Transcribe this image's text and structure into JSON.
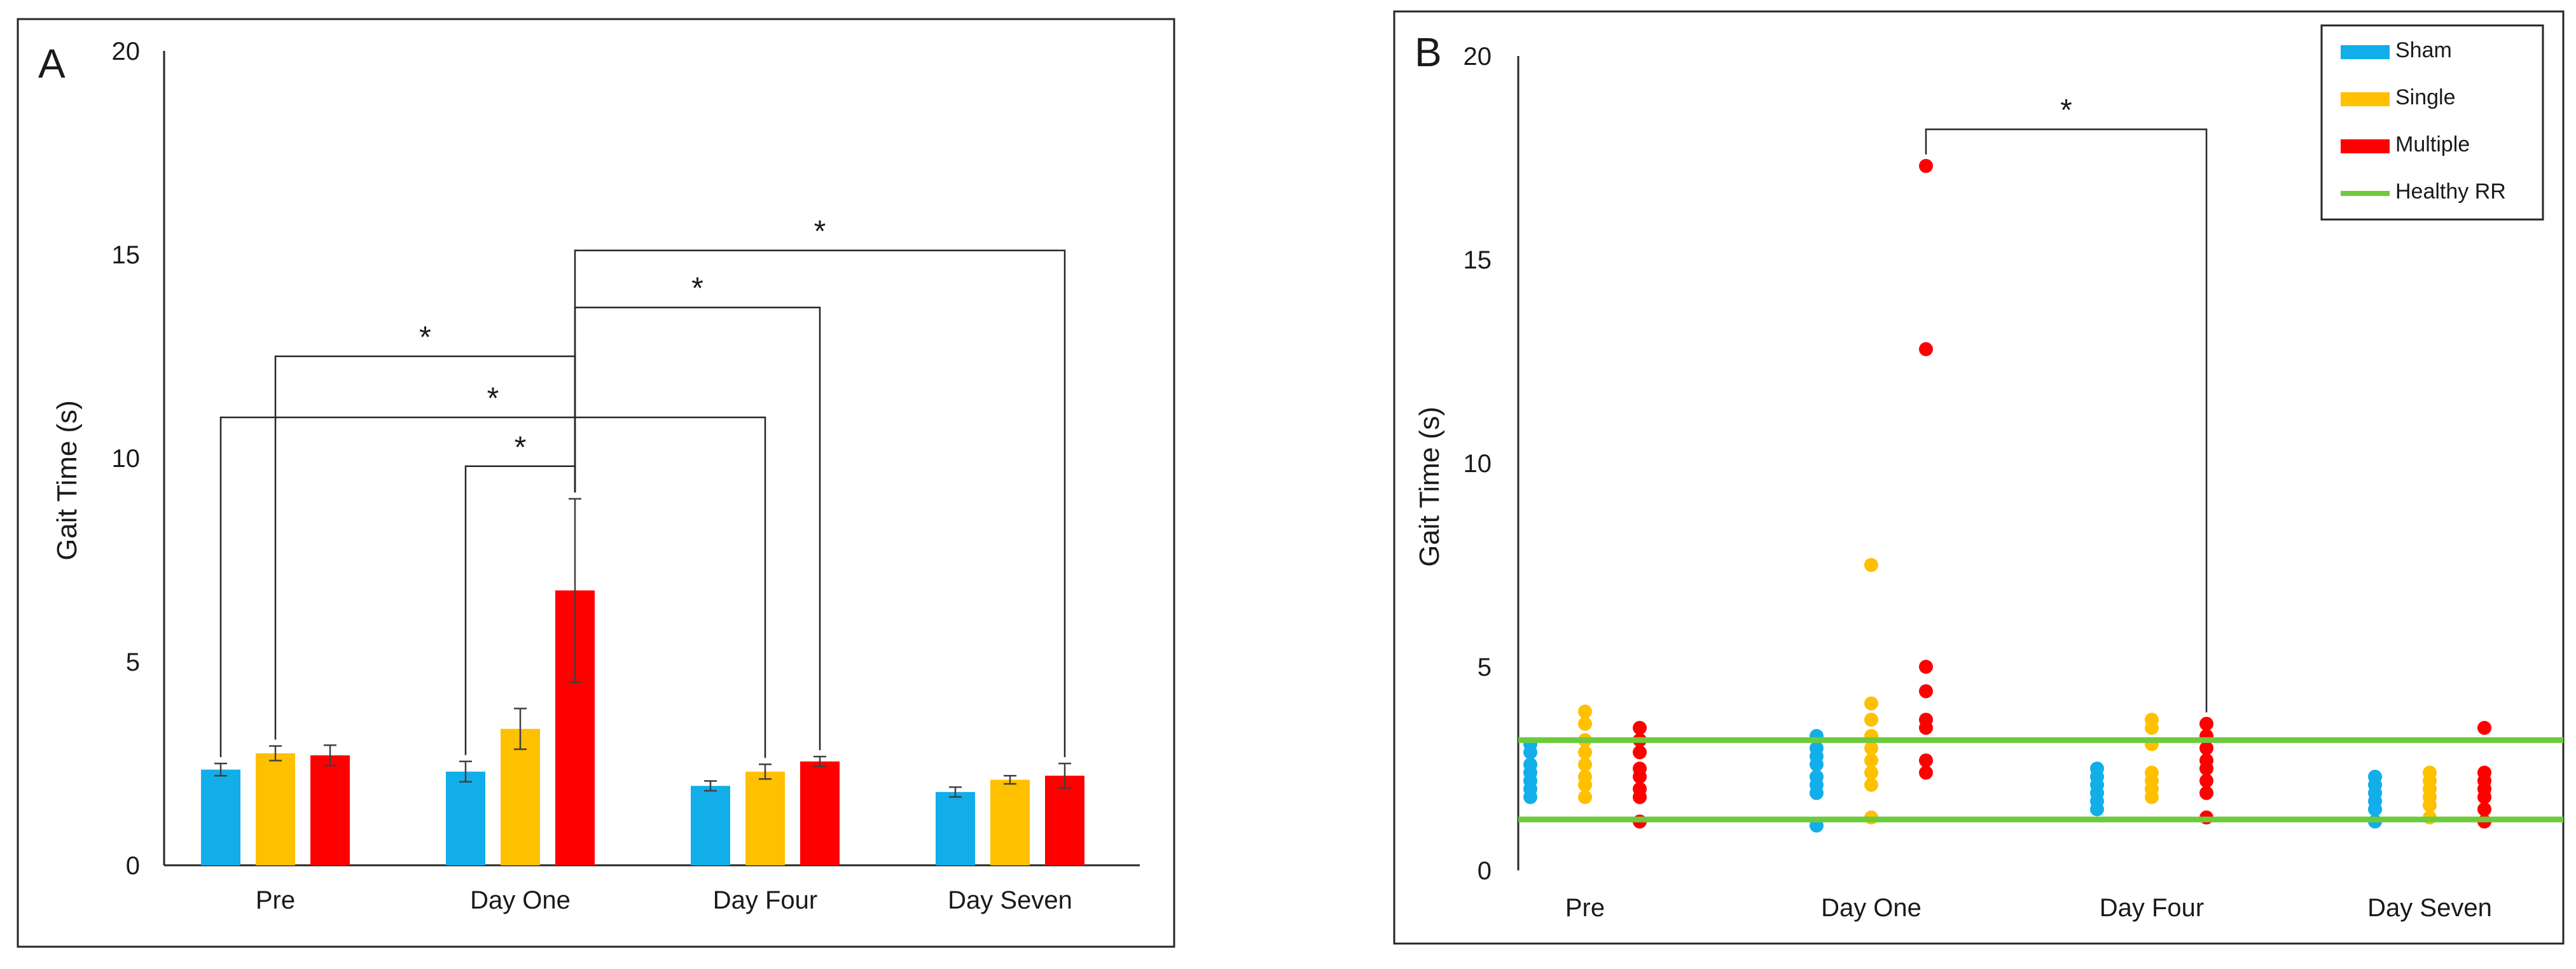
{
  "colors": {
    "sham": "#12aee9",
    "single": "#ffc000",
    "multiple": "#ff0000",
    "healthy": "#6ccb3b",
    "axis": "#262626"
  },
  "chart_data": [
    {
      "panel": "A",
      "type": "bar",
      "ylabel": "Gait Time (s)",
      "ylim": [
        0,
        20
      ],
      "yticks": [
        0,
        5,
        10,
        15,
        20
      ],
      "categories": [
        "Pre",
        "Day One",
        "Day Four",
        "Day Seven"
      ],
      "series": [
        {
          "name": "Sham",
          "color": "#12aee9",
          "values": [
            2.35,
            2.3,
            1.95,
            1.8
          ],
          "errors": [
            0.15,
            0.25,
            0.12,
            0.12
          ]
        },
        {
          "name": "Single",
          "color": "#ffc000",
          "values": [
            2.75,
            3.35,
            2.3,
            2.1
          ],
          "errors": [
            0.18,
            0.5,
            0.18,
            0.1
          ]
        },
        {
          "name": "Multiple",
          "color": "#ff0000",
          "values": [
            2.7,
            6.75,
            2.55,
            2.2
          ],
          "errors": [
            0.25,
            2.25,
            0.12,
            0.3
          ]
        }
      ],
      "annotations": [
        {
          "label": "*",
          "from": [
            1,
            "Multiple"
          ],
          "to": [
            1,
            "Sham"
          ],
          "y": 9.8
        },
        {
          "label": "*",
          "from": [
            0,
            "Single"
          ],
          "to": [
            1,
            "Multiple"
          ],
          "y": 12.5
        },
        {
          "label": "*",
          "from": [
            0,
            "Sham"
          ],
          "to": [
            2,
            "Single"
          ],
          "y": 11.0
        },
        {
          "label": "*",
          "from": [
            1,
            "Multiple"
          ],
          "to": [
            2,
            "Multiple"
          ],
          "y": 13.7
        },
        {
          "label": "*",
          "from": [
            1,
            "Multiple"
          ],
          "to": [
            3,
            "Multiple"
          ],
          "y": 15.1
        }
      ]
    },
    {
      "panel": "B",
      "type": "scatter",
      "ylabel": "Gait Time (s)",
      "ylim": [
        0,
        20
      ],
      "yticks": [
        0,
        5,
        10,
        15,
        20
      ],
      "categories": [
        "Pre",
        "Day One",
        "Day Four",
        "Day Seven"
      ],
      "legend_position": "top-right",
      "series": [
        {
          "name": "Sham",
          "color": "#12aee9",
          "points": [
            [
              1.8,
              2.0,
              2.2,
              2.4,
              2.6,
              2.9,
              3.1
            ],
            [
              1.1,
              1.9,
              2.1,
              2.3,
              2.6,
              2.8,
              3.0,
              3.3
            ],
            [
              1.5,
              1.7,
              1.9,
              2.1,
              2.3,
              2.5
            ],
            [
              1.2,
              1.5,
              1.7,
              1.9,
              2.1,
              2.3
            ]
          ]
        },
        {
          "name": "Single",
          "color": "#ffc000",
          "points": [
            [
              1.8,
              2.1,
              2.3,
              2.6,
              2.9,
              3.2,
              3.6,
              3.9
            ],
            [
              1.3,
              2.1,
              2.4,
              2.7,
              3.0,
              3.3,
              3.7,
              4.1,
              7.5
            ],
            [
              1.8,
              2.0,
              2.2,
              2.4,
              3.1,
              3.5,
              3.7
            ],
            [
              1.3,
              1.6,
              1.8,
              2.0,
              2.2,
              2.4
            ]
          ]
        },
        {
          "name": "Multiple",
          "color": "#ff0000",
          "points": [
            [
              1.2,
              1.8,
              2.0,
              2.3,
              2.5,
              2.9,
              3.2,
              3.5
            ],
            [
              2.4,
              2.7,
              3.5,
              3.7,
              4.4,
              5.0,
              12.8,
              17.3
            ],
            [
              1.3,
              1.9,
              2.2,
              2.5,
              2.7,
              3.0,
              3.3,
              3.6
            ],
            [
              1.2,
              1.5,
              1.8,
              2.0,
              2.2,
              2.4,
              3.5
            ]
          ]
        }
      ],
      "reference_lines": {
        "name": "Healthy RR",
        "color": "#6ccb3b",
        "values": [
          1.25,
          3.2
        ]
      },
      "legend": [
        "Sham",
        "Single",
        "Multiple",
        "Healthy RR"
      ],
      "annotations": [
        {
          "label": "*",
          "from": [
            1,
            "Multiple"
          ],
          "to": [
            2,
            "Multiple"
          ],
          "y": 18.2
        }
      ]
    }
  ]
}
